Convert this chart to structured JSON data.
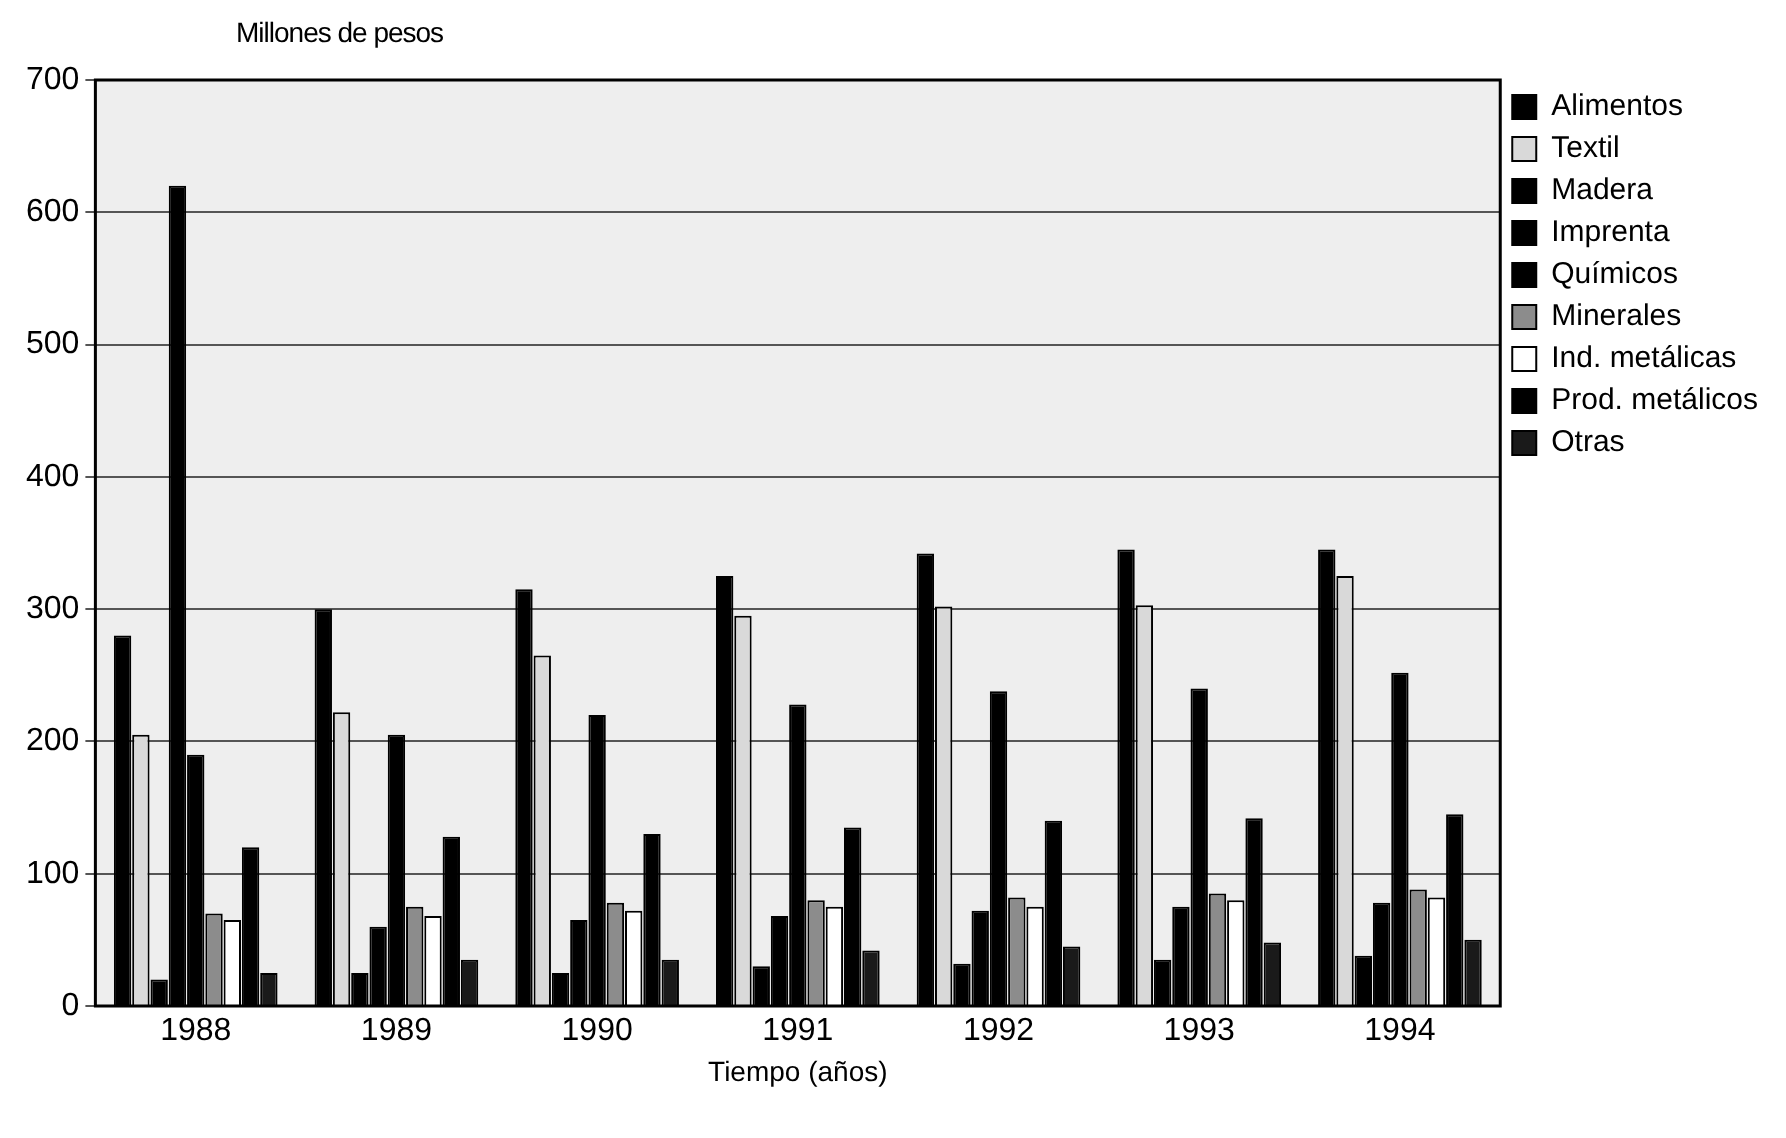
{
  "chart_data": {
    "type": "bar",
    "ylabel": "Millones de pesos",
    "xlabel": "Tiempo (años)",
    "categories": [
      "1988",
      "1989",
      "1990",
      "1991",
      "1992",
      "1993",
      "1994"
    ],
    "series": [
      {
        "name": "Alimentos",
        "color": "#000000",
        "values": [
          280,
          300,
          315,
          325,
          342,
          345,
          345
        ]
      },
      {
        "name": "Textil",
        "color": "#d9d9d9",
        "values": [
          205,
          222,
          265,
          295,
          302,
          303,
          325
        ]
      },
      {
        "name": "Madera",
        "color": "#000000",
        "values": [
          20,
          25,
          25,
          30,
          32,
          35,
          38
        ]
      },
      {
        "name": "Imprenta",
        "color": "#000000",
        "values": [
          620,
          60,
          65,
          68,
          72,
          75,
          78
        ]
      },
      {
        "name": "Químicos",
        "color": "#000000",
        "values": [
          190,
          205,
          220,
          228,
          238,
          240,
          252
        ]
      },
      {
        "name": "Minerales",
        "color": "#8c8c8c",
        "values": [
          70,
          75,
          78,
          80,
          82,
          85,
          88
        ]
      },
      {
        "name": "Ind. metálicas",
        "color": "#ffffff",
        "values": [
          65,
          68,
          72,
          75,
          75,
          80,
          82
        ]
      },
      {
        "name": "Prod. metálicos",
        "color": "#000000",
        "values": [
          120,
          128,
          130,
          135,
          140,
          142,
          145
        ]
      },
      {
        "name": "Otras",
        "color": "#1a1a1a",
        "values": [
          25,
          35,
          35,
          42,
          45,
          48,
          50
        ]
      }
    ],
    "ylim": [
      0,
      700
    ],
    "yticks": [
      0,
      100,
      200,
      300,
      400,
      500,
      600,
      700
    ],
    "grid": "y",
    "legend": "top right"
  }
}
